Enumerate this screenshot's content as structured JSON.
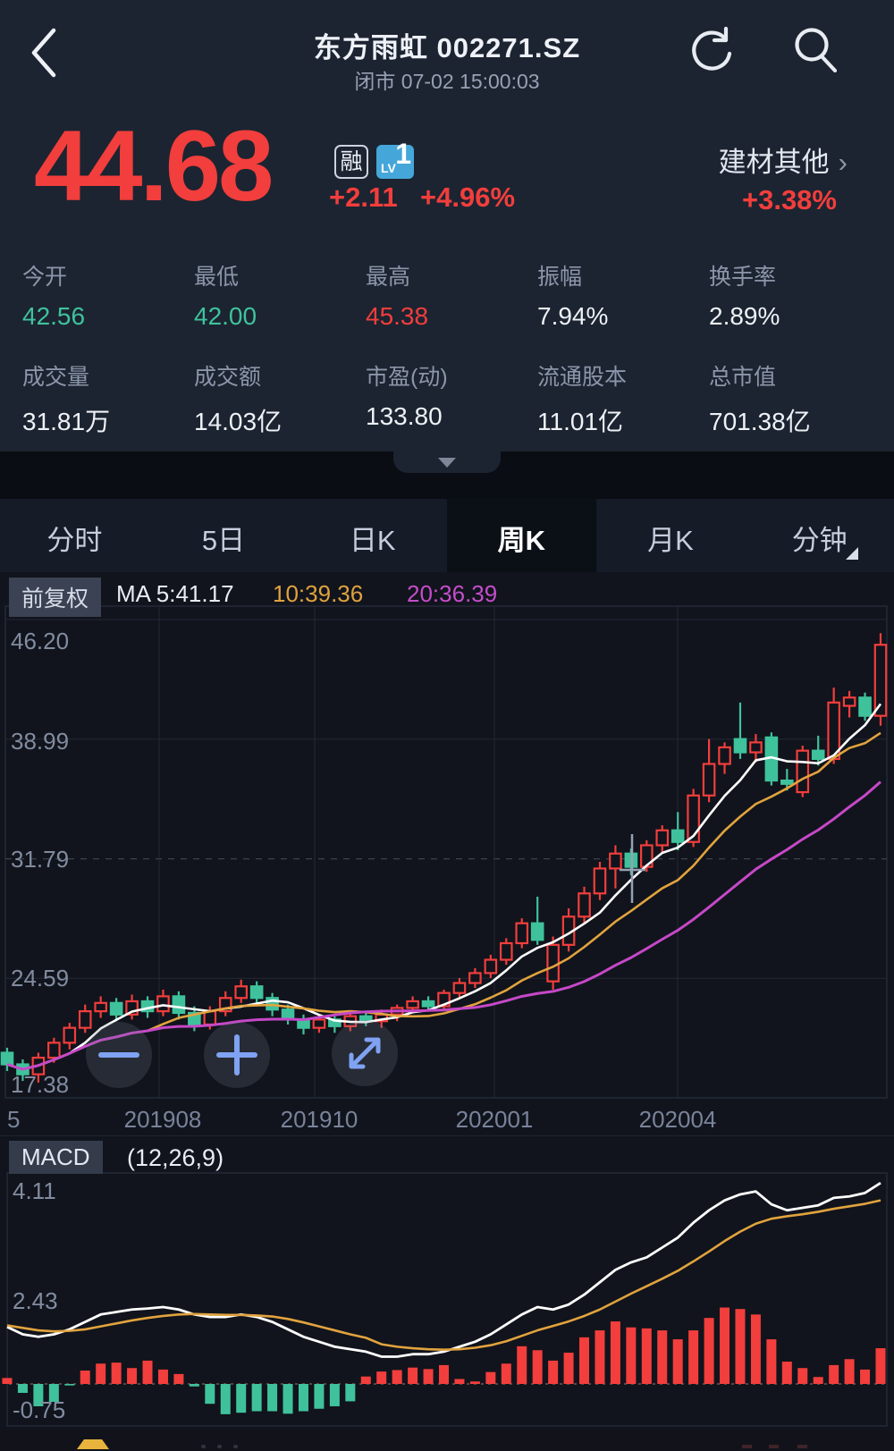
{
  "header": {
    "title": "东方雨虹 002271.SZ",
    "status": "闭市 07-02 15:00:03"
  },
  "quote": {
    "price": "44.68",
    "change": "+2.11",
    "change_pct": "+4.96%",
    "badge_margin": "融",
    "badge_level_text": "LV",
    "badge_level_num": "1",
    "sector": "建材其他",
    "sector_chevron": "›",
    "sector_change": "+3.38%"
  },
  "stats": {
    "cells": [
      {
        "label": "今开",
        "value": "42.56",
        "color": "green"
      },
      {
        "label": "最低",
        "value": "42.00",
        "color": "green"
      },
      {
        "label": "最高",
        "value": "45.38",
        "color": "red"
      },
      {
        "label": "振幅",
        "value": "7.94%",
        "color": "white"
      },
      {
        "label": "换手率",
        "value": "2.89%",
        "color": "white"
      },
      {
        "label": "成交量",
        "value": "31.81万",
        "color": "white"
      },
      {
        "label": "成交额",
        "value": "14.03亿",
        "color": "white"
      },
      {
        "label": "市盈(动)",
        "value": "133.80",
        "color": "white"
      },
      {
        "label": "流通股本",
        "value": "11.01亿",
        "color": "white"
      },
      {
        "label": "总市值",
        "value": "701.38亿",
        "color": "white"
      }
    ]
  },
  "tabs": {
    "items": [
      {
        "label": "分时",
        "active": false
      },
      {
        "label": "5日",
        "active": false
      },
      {
        "label": "日K",
        "active": false
      },
      {
        "label": "周K",
        "active": true
      },
      {
        "label": "月K",
        "active": false
      },
      {
        "label": "分钟",
        "active": false
      }
    ]
  },
  "legend": {
    "adjust_label": "前复权",
    "ma5": "MA 5:41.17",
    "ma10": "10:39.36",
    "ma20": "20:36.39"
  },
  "macd_header": {
    "name": "MACD",
    "params": "(12,26,9)"
  },
  "chart_data": {
    "type": "candlestick+macd",
    "title": "东方雨虹 002271.SZ 周K",
    "price_axis": {
      "max": 46.2,
      "min": 17.38,
      "labels": [
        "46.20",
        "38.99",
        "31.79",
        "24.59",
        "17.38"
      ]
    },
    "x_axis": {
      "labels": [
        "5",
        "201908",
        "201910",
        "202001",
        "202004"
      ]
    },
    "ma_periods": [
      5,
      10,
      20
    ],
    "ma_current": {
      "ma5": 41.17,
      "ma10": 39.36,
      "ma20": 36.39
    },
    "colors": {
      "up": "#f23e3c",
      "down": "#3fc29c",
      "ma5": "#ffffff",
      "ma10": "#e2a33e",
      "ma20": "#c648c8"
    },
    "candles": [
      [
        20.1,
        20.4,
        19.0,
        19.4
      ],
      [
        19.4,
        19.7,
        18.4,
        18.8
      ],
      [
        18.8,
        20.1,
        18.3,
        19.8
      ],
      [
        19.8,
        21.0,
        19.5,
        20.7
      ],
      [
        20.7,
        21.9,
        20.3,
        21.6
      ],
      [
        21.6,
        23.0,
        21.3,
        22.6
      ],
      [
        22.6,
        23.5,
        22.2,
        23.1
      ],
      [
        23.1,
        23.4,
        22.0,
        22.4
      ],
      [
        22.4,
        23.6,
        22.1,
        23.2
      ],
      [
        23.2,
        23.5,
        22.2,
        22.6
      ],
      [
        22.6,
        23.9,
        22.3,
        23.5
      ],
      [
        23.5,
        23.8,
        22.1,
        22.5
      ],
      [
        22.5,
        22.9,
        21.4,
        21.8
      ],
      [
        21.8,
        22.9,
        21.5,
        22.6
      ],
      [
        22.6,
        23.8,
        22.3,
        23.4
      ],
      [
        23.4,
        24.5,
        23.1,
        24.1
      ],
      [
        24.1,
        24.4,
        23.0,
        23.4
      ],
      [
        23.4,
        23.7,
        22.3,
        22.7
      ],
      [
        22.7,
        23.0,
        21.8,
        22.1
      ],
      [
        22.1,
        22.4,
        21.2,
        21.6
      ],
      [
        21.6,
        22.4,
        21.3,
        22.1
      ],
      [
        22.1,
        22.3,
        21.3,
        21.7
      ],
      [
        21.7,
        22.6,
        21.4,
        22.3
      ],
      [
        22.3,
        22.6,
        21.7,
        22.0
      ],
      [
        22.0,
        22.7,
        21.6,
        22.4
      ],
      [
        22.4,
        23.0,
        22.0,
        22.8
      ],
      [
        22.8,
        23.5,
        22.5,
        23.2
      ],
      [
        23.2,
        23.5,
        22.6,
        22.9
      ],
      [
        22.9,
        23.9,
        22.7,
        23.7
      ],
      [
        23.7,
        24.6,
        23.4,
        24.3
      ],
      [
        24.3,
        25.2,
        24.0,
        24.9
      ],
      [
        24.9,
        26.0,
        24.6,
        25.7
      ],
      [
        25.7,
        27.0,
        25.4,
        26.7
      ],
      [
        26.7,
        28.2,
        26.4,
        27.9
      ],
      [
        27.9,
        29.5,
        26.6,
        26.9
      ],
      [
        24.4,
        27.1,
        23.9,
        26.6
      ],
      [
        26.6,
        28.8,
        26.2,
        28.3
      ],
      [
        28.3,
        30.1,
        27.9,
        29.7
      ],
      [
        29.7,
        31.6,
        29.3,
        31.2
      ],
      [
        31.2,
        32.6,
        30.0,
        32.1
      ],
      [
        32.1,
        32.4,
        30.8,
        31.3
      ],
      [
        31.3,
        32.9,
        31.0,
        32.6
      ],
      [
        32.6,
        33.8,
        32.2,
        33.5
      ],
      [
        33.5,
        34.6,
        32.3,
        32.8
      ],
      [
        32.8,
        36.0,
        32.5,
        35.6
      ],
      [
        35.6,
        39.0,
        35.2,
        37.5
      ],
      [
        37.5,
        38.8,
        36.9,
        38.5
      ],
      [
        39.0,
        41.2,
        37.8,
        38.2
      ],
      [
        38.2,
        39.3,
        37.6,
        38.8
      ],
      [
        39.1,
        39.4,
        36.2,
        36.5
      ],
      [
        36.5,
        37.2,
        35.9,
        36.3
      ],
      [
        35.8,
        38.6,
        35.5,
        38.3
      ],
      [
        38.3,
        39.2,
        37.4,
        37.8
      ],
      [
        37.8,
        42.1,
        37.5,
        41.2
      ],
      [
        41.0,
        41.9,
        40.3,
        41.5
      ],
      [
        41.5,
        41.8,
        40.1,
        40.4
      ],
      [
        40.4,
        45.38,
        39.8,
        44.68
      ]
    ],
    "macd": {
      "params": [
        12,
        26,
        9
      ],
      "axis_labels": [
        "4.11",
        "2.43",
        "-0.75"
      ],
      "dif": [
        1.15,
        1.0,
        0.95,
        1.0,
        1.1,
        1.25,
        1.4,
        1.45,
        1.5,
        1.52,
        1.55,
        1.5,
        1.4,
        1.35,
        1.35,
        1.4,
        1.35,
        1.25,
        1.1,
        0.95,
        0.85,
        0.75,
        0.7,
        0.65,
        0.55,
        0.55,
        0.6,
        0.6,
        0.65,
        0.75,
        0.85,
        1.0,
        1.2,
        1.4,
        1.55,
        1.5,
        1.6,
        1.8,
        2.05,
        2.3,
        2.45,
        2.55,
        2.75,
        2.95,
        3.25,
        3.5,
        3.7,
        3.82,
        3.88,
        3.62,
        3.5,
        3.55,
        3.6,
        3.75,
        3.78,
        3.85,
        4.05
      ],
      "dea": [
        1.18,
        1.13,
        1.08,
        1.06,
        1.07,
        1.1,
        1.16,
        1.22,
        1.28,
        1.33,
        1.37,
        1.4,
        1.41,
        1.4,
        1.39,
        1.39,
        1.38,
        1.36,
        1.31,
        1.24,
        1.16,
        1.08,
        1.0,
        0.93,
        0.8,
        0.75,
        0.72,
        0.7,
        0.69,
        0.7,
        0.73,
        0.78,
        0.86,
        0.97,
        1.08,
        1.17,
        1.26,
        1.37,
        1.5,
        1.66,
        1.82,
        1.97,
        2.12,
        2.28,
        2.47,
        2.67,
        2.88,
        3.07,
        3.23,
        3.33,
        3.38,
        3.42,
        3.47,
        3.53,
        3.58,
        3.63,
        3.7
      ],
      "hist": [
        0.12,
        -0.18,
        -0.45,
        -0.36,
        -0.03,
        0.27,
        0.41,
        0.43,
        0.32,
        0.47,
        0.29,
        0.2,
        -0.05,
        -0.4,
        -0.61,
        -0.58,
        -0.55,
        -0.55,
        -0.6,
        -0.55,
        -0.5,
        -0.45,
        -0.35,
        0.15,
        0.25,
        0.28,
        0.33,
        0.3,
        0.38,
        0.1,
        0.05,
        0.24,
        0.41,
        0.76,
        0.68,
        0.47,
        0.63,
        0.94,
        1.08,
        1.26,
        1.14,
        1.12,
        1.08,
        0.9,
        1.08,
        1.33,
        1.54,
        1.51,
        1.4,
        0.9,
        0.45,
        0.32,
        0.14,
        0.38,
        0.5,
        0.29,
        0.72
      ]
    }
  }
}
